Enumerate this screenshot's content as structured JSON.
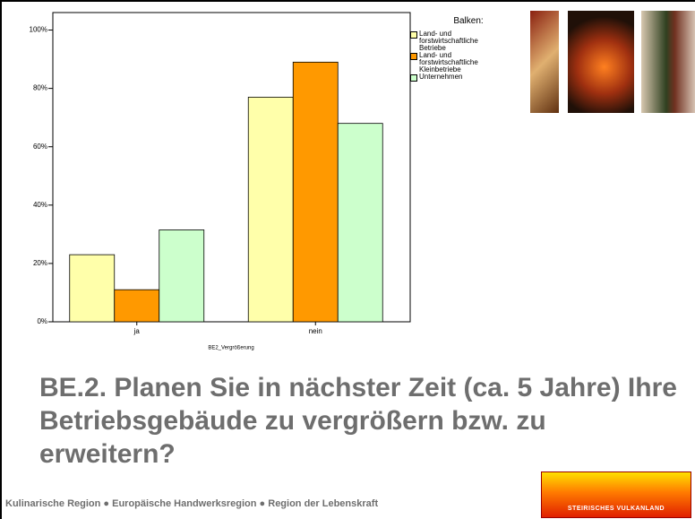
{
  "chart_data": {
    "type": "bar",
    "x_label": "BE2_Vergrößerung",
    "categories": [
      "ja",
      "nein"
    ],
    "series": [
      {
        "name": "Land- und forstwirtschaftliche Betriebe",
        "color": "#ffffaa",
        "values": [
          23,
          77
        ]
      },
      {
        "name": "Land- und forstwirtschaftliche Kleinbetriebe",
        "color": "#ff9900",
        "values": [
          11,
          89
        ]
      },
      {
        "name": "Unternehmen",
        "color": "#ccffcc",
        "values": [
          31.5,
          68
        ]
      }
    ],
    "legend_title": "Balken:",
    "ylim": [
      0,
      106
    ],
    "yticks": [
      {
        "value": 0,
        "label": "0%"
      },
      {
        "value": 20,
        "label": "20%"
      },
      {
        "value": 40,
        "label": "40%"
      },
      {
        "value": 60,
        "label": "60%"
      },
      {
        "value": 80,
        "label": "80%"
      },
      {
        "value": 100,
        "label": "100%"
      }
    ]
  },
  "slide": {
    "title": "BE.2. Planen Sie in nächster Zeit (ca. 5 Jahre) Ihre Betriebsgebäude zu vergrößern bzw. zu erweitern?",
    "footer": "Kulinarische Region ● Europäische Handwerksregion ● Region der Lebenskraft",
    "logo": "STEIRISCHES VULKANLAND"
  }
}
